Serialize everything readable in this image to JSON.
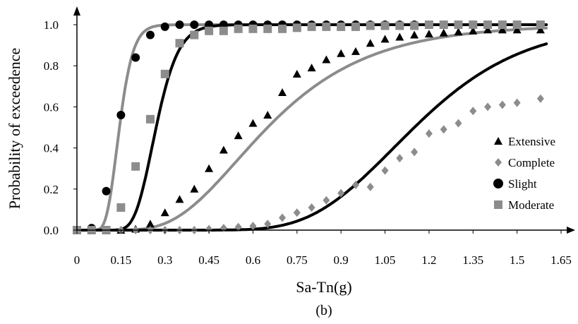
{
  "chart_data": {
    "type": "scatter",
    "caption": "(b)",
    "xlabel": "Sa-Tn(g)",
    "ylabel": "Probability of exceedence",
    "xlim": [
      0,
      1.65
    ],
    "ylim": [
      0,
      1.0
    ],
    "xticks": [
      "0",
      "0.15",
      "0.3",
      "0.45",
      "0.6",
      "0.75",
      "0.9",
      "1.05",
      "1.2",
      "1.35",
      "1.5",
      "1.65"
    ],
    "yticks": [
      "0.0",
      "0.2",
      "0.4",
      "0.6",
      "0.8",
      "1.0"
    ],
    "grid": false,
    "legend_position": "right",
    "series": [
      {
        "name": "Extensive",
        "marker": "triangle",
        "color": "#000000",
        "fit_color": "#8c8c8c",
        "fit": {
          "median": 0.65,
          "beta": 0.42
        },
        "points": [
          [
            0,
            0
          ],
          [
            0.05,
            0
          ],
          [
            0.1,
            0
          ],
          [
            0.15,
            0
          ],
          [
            0.2,
            0.005
          ],
          [
            0.25,
            0.03
          ],
          [
            0.3,
            0.085
          ],
          [
            0.35,
            0.15
          ],
          [
            0.4,
            0.2
          ],
          [
            0.45,
            0.3
          ],
          [
            0.5,
            0.39
          ],
          [
            0.55,
            0.46
          ],
          [
            0.6,
            0.52
          ],
          [
            0.65,
            0.56
          ],
          [
            0.7,
            0.67
          ],
          [
            0.75,
            0.76
          ],
          [
            0.8,
            0.79
          ],
          [
            0.85,
            0.83
          ],
          [
            0.9,
            0.86
          ],
          [
            0.95,
            0.87
          ],
          [
            1.0,
            0.91
          ],
          [
            1.05,
            0.93
          ],
          [
            1.1,
            0.94
          ],
          [
            1.15,
            0.95
          ],
          [
            1.2,
            0.955
          ],
          [
            1.25,
            0.96
          ],
          [
            1.3,
            0.965
          ],
          [
            1.35,
            0.97
          ],
          [
            1.4,
            0.975
          ],
          [
            1.45,
            0.975
          ],
          [
            1.5,
            0.975
          ],
          [
            1.58,
            0.975
          ]
        ]
      },
      {
        "name": "Complete",
        "marker": "diamond",
        "color": "#8c8c8c",
        "fit_color": "#000000",
        "fit": {
          "median": 1.15,
          "beta": 0.25
        },
        "points": [
          [
            0,
            0
          ],
          [
            0.05,
            0
          ],
          [
            0.1,
            0
          ],
          [
            0.15,
            0
          ],
          [
            0.2,
            0
          ],
          [
            0.25,
            0
          ],
          [
            0.3,
            0
          ],
          [
            0.35,
            0
          ],
          [
            0.4,
            0
          ],
          [
            0.45,
            0.005
          ],
          [
            0.5,
            0.01
          ],
          [
            0.55,
            0.015
          ],
          [
            0.6,
            0.02
          ],
          [
            0.65,
            0.03
          ],
          [
            0.7,
            0.06
          ],
          [
            0.75,
            0.085
          ],
          [
            0.8,
            0.11
          ],
          [
            0.85,
            0.145
          ],
          [
            0.9,
            0.18
          ],
          [
            0.95,
            0.22
          ],
          [
            1.0,
            0.21
          ],
          [
            1.05,
            0.29
          ],
          [
            1.1,
            0.35
          ],
          [
            1.15,
            0.38
          ],
          [
            1.2,
            0.47
          ],
          [
            1.25,
            0.49
          ],
          [
            1.3,
            0.52
          ],
          [
            1.35,
            0.58
          ],
          [
            1.4,
            0.6
          ],
          [
            1.45,
            0.61
          ],
          [
            1.5,
            0.62
          ],
          [
            1.58,
            0.64
          ]
        ]
      },
      {
        "name": "Slight",
        "marker": "circle",
        "color": "#000000",
        "fit_color": "#8c8c8c",
        "fit": {
          "median": 0.145,
          "beta": 0.25
        },
        "points": [
          [
            0,
            0
          ],
          [
            0.05,
            0.01
          ],
          [
            0.1,
            0.19
          ],
          [
            0.15,
            0.56
          ],
          [
            0.2,
            0.84
          ],
          [
            0.25,
            0.95
          ],
          [
            0.3,
            0.99
          ],
          [
            0.35,
            1.0
          ],
          [
            0.4,
            1.0
          ],
          [
            0.45,
            1.0
          ],
          [
            0.5,
            1.0
          ],
          [
            0.55,
            1.0
          ],
          [
            0.6,
            1.0
          ],
          [
            0.65,
            1.0
          ],
          [
            0.7,
            1.0
          ],
          [
            0.75,
            1.0
          ],
          [
            0.8,
            1.0
          ],
          [
            0.85,
            1.0
          ],
          [
            0.9,
            1.0
          ],
          [
            0.95,
            1.0
          ],
          [
            1.0,
            1.0
          ],
          [
            1.05,
            1.0
          ],
          [
            1.1,
            1.0
          ],
          [
            1.15,
            1.0
          ],
          [
            1.2,
            1.0
          ],
          [
            1.25,
            1.0
          ],
          [
            1.3,
            1.0
          ],
          [
            1.35,
            1.0
          ],
          [
            1.4,
            1.0
          ],
          [
            1.45,
            1.0
          ],
          [
            1.5,
            1.0
          ],
          [
            1.58,
            1.0
          ]
        ]
      },
      {
        "name": "Moderate",
        "marker": "square",
        "color": "#8c8c8c",
        "fit_color": "#000000",
        "fit": {
          "median": 0.27,
          "beta": 0.22
        },
        "points": [
          [
            0,
            0
          ],
          [
            0.05,
            0
          ],
          [
            0.1,
            0
          ],
          [
            0.15,
            0.11
          ],
          [
            0.2,
            0.31
          ],
          [
            0.25,
            0.54
          ],
          [
            0.3,
            0.76
          ],
          [
            0.35,
            0.91
          ],
          [
            0.4,
            0.95
          ],
          [
            0.45,
            0.97
          ],
          [
            0.5,
            0.97
          ],
          [
            0.55,
            0.98
          ],
          [
            0.6,
            0.98
          ],
          [
            0.65,
            0.98
          ],
          [
            0.7,
            0.98
          ],
          [
            0.75,
            0.985
          ],
          [
            0.8,
            0.99
          ],
          [
            0.85,
            0.99
          ],
          [
            0.9,
            0.99
          ],
          [
            0.95,
            0.99
          ],
          [
            1.0,
            0.995
          ],
          [
            1.05,
            0.995
          ],
          [
            1.1,
            0.995
          ],
          [
            1.15,
            0.995
          ],
          [
            1.2,
            1.0
          ],
          [
            1.25,
            1.0
          ],
          [
            1.3,
            1.0
          ],
          [
            1.35,
            1.0
          ],
          [
            1.4,
            1.0
          ],
          [
            1.45,
            1.0
          ],
          [
            1.5,
            1.0
          ],
          [
            1.58,
            1.0
          ]
        ]
      }
    ]
  }
}
